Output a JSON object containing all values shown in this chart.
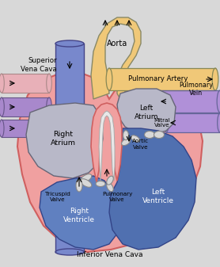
{
  "bg_color": "#d8d8d8",
  "heart_fill_color": "#f0a0a0",
  "heart_outline_color": "#d06060",
  "right_atrium_color": "#b8b8c8",
  "left_atrium_color": "#b8b8c8",
  "right_ventricle_color": "#6080c0",
  "left_ventricle_color": "#5070b0",
  "aorta_color": "#f0c878",
  "pulm_artery_color": "#f0c878",
  "vena_cava_color": "#7888cc",
  "pulm_vein_color": "#b090d8",
  "pipe_pink_color": "#e8b0b8",
  "pipe_purple_color": "#a888cc",
  "labels": {
    "superior_vena_cava": "Superior\nVena Cava",
    "inferior_vena_cava": "Inferior Vena Cava",
    "aorta": "Aorta",
    "pulmonary_artery": "Pulmonary Artery",
    "pulmonary_vein": "Pulmonary\nVein",
    "right_atrium": "Right\nAtrium",
    "left_atrium": "Left\nAtrium",
    "tricuspid_valve": "Tricuspid\nValve",
    "pulmonary_valve": "Pulmonary\nValve",
    "aortic_valve": "Aortic\nValve",
    "mitral_valve": "Mitral\nValve",
    "right_ventricle": "Right\nVentricle",
    "left_ventricle": "Left\nVentricle"
  }
}
